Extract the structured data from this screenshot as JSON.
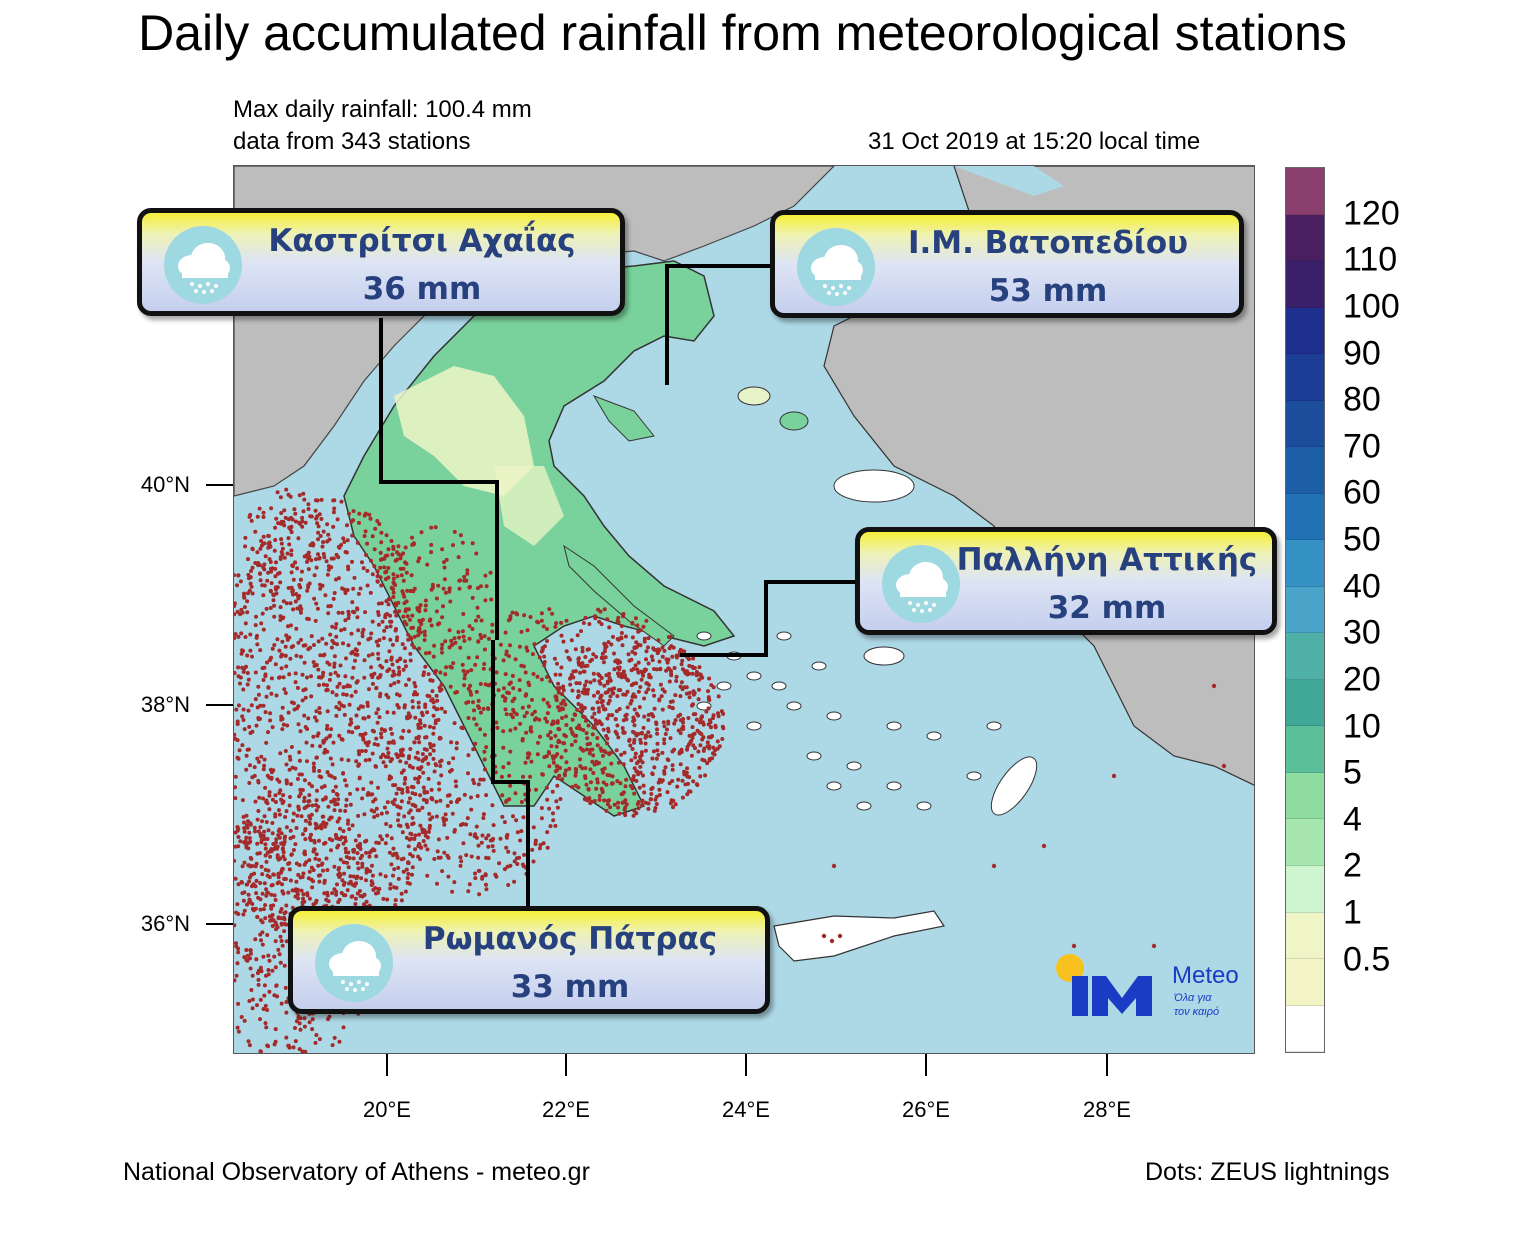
{
  "title": "Daily accumulated rainfall from meteorological stations",
  "max_rainfall": "Max daily rainfall: 100.4 mm",
  "stations_info": "data from 343 stations",
  "timestamp": "31 Oct 2019 at 15:20 local time",
  "axes": {
    "lat_labels": [
      "40°N",
      "38°N",
      "36°N"
    ],
    "lon_labels": [
      "20°E",
      "22°E",
      "24°E",
      "26°E",
      "28°E"
    ]
  },
  "colorbar": {
    "labels": [
      "120",
      "110",
      "100",
      "90",
      "80",
      "70",
      "60",
      "50",
      "40",
      "30",
      "20",
      "10",
      "5",
      "4",
      "2",
      "1",
      "0.5"
    ],
    "colors": [
      "#8a3f6e",
      "#4a1f62",
      "#3a1f6b",
      "#1f2f8e",
      "#1c3d96",
      "#1c4c9c",
      "#1d5fa6",
      "#2072b4",
      "#3591c3",
      "#4aa3c8",
      "#4fb0a8",
      "#41a797",
      "#5bbf9a",
      "#8fdca1",
      "#a8e6b0",
      "#cef5d0",
      "#f0f5c8",
      "#f2f4c6",
      "#ffffff"
    ]
  },
  "callouts": [
    {
      "name": "Καστρίτσι Αχαΐας",
      "value": "36 mm",
      "icon": "rain-cloud-icon"
    },
    {
      "name": "Ι.Μ. Βατοπεδίου",
      "value": "53 mm",
      "icon": "rain-cloud-icon"
    },
    {
      "name": "Παλλήνη Αττικής",
      "value": "32 mm",
      "icon": "rain-cloud-icon"
    },
    {
      "name": "Ρωμανός Πάτρας",
      "value": "33 mm",
      "icon": "rain-cloud-icon"
    }
  ],
  "logo": {
    "name": "Meteo",
    "tagline1": "Όλα για",
    "tagline2": "τον καιρό"
  },
  "footer_left": "National Observatory of Athens - meteo.gr",
  "footer_right": "Dots: ZEUS lightnings",
  "colors": {
    "sea": "#add8e6",
    "land_outside": "#bdbdbd",
    "greece_rain": "#79d29b",
    "lightning": "#a52a2a",
    "callout_text": "#27407e"
  }
}
